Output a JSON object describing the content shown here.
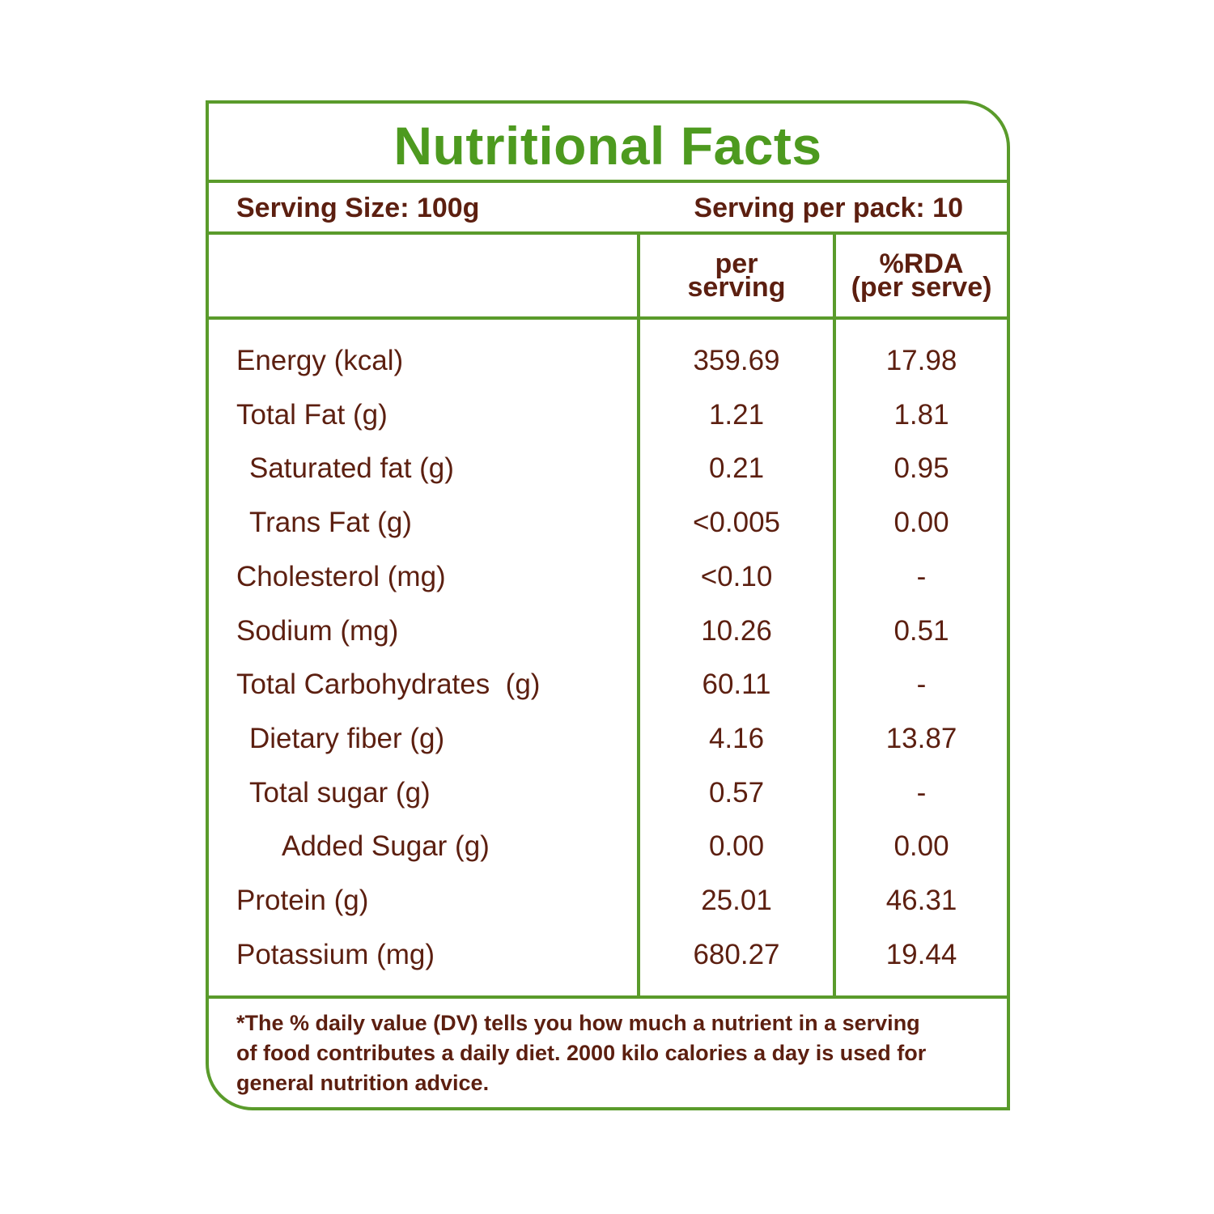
{
  "title": "Nutritional Facts",
  "serving_size": "Serving Size: 100g",
  "serving_per_pack": "Serving per pack: 10",
  "columns": {
    "per_serving_line1": "per",
    "per_serving_line2": "serving",
    "rda_line1": "%RDA",
    "rda_line2": "(per serve)"
  },
  "rows": [
    {
      "label": "Energy (kcal)",
      "per_serving": "359.69",
      "rda": "17.98",
      "indent": 0
    },
    {
      "label": "Total Fat (g)",
      "per_serving": "1.21",
      "rda": "1.81",
      "indent": 0
    },
    {
      "label": "Saturated fat (g)",
      "per_serving": "0.21",
      "rda": "0.95",
      "indent": 1
    },
    {
      "label": "Trans Fat (g)",
      "per_serving": "<0.005",
      "rda": "0.00",
      "indent": 1
    },
    {
      "label": "Cholesterol (mg)",
      "per_serving": "<0.10",
      "rda": "-",
      "indent": 0
    },
    {
      "label": "Sodium (mg)",
      "per_serving": "10.26",
      "rda": "0.51",
      "indent": 0
    },
    {
      "label": "Total Carbohydrates  (g)",
      "per_serving": "60.11",
      "rda": "-",
      "indent": 0
    },
    {
      "label": "Dietary fiber (g)",
      "per_serving": "4.16",
      "rda": "13.87",
      "indent": 1
    },
    {
      "label": "Total sugar (g)",
      "per_serving": "0.57",
      "rda": "-",
      "indent": 1
    },
    {
      "label": "Added Sugar (g)",
      "per_serving": "0.00",
      "rda": "0.00",
      "indent": 2
    },
    {
      "label": "Protein (g)",
      "per_serving": "25.01",
      "rda": "46.31",
      "indent": 0
    },
    {
      "label": "Potassium (mg)",
      "per_serving": "680.27",
      "rda": "19.44",
      "indent": 0
    }
  ],
  "footnote_lines": [
    "*The % daily value (DV) tells you how much a nutrient in a serving",
    "of food contributes a daily diet. 2000 kilo calories a day is used for",
    "general nutrition advice."
  ],
  "colors": {
    "border": "#5a9b2b",
    "title": "#4d9a1f",
    "text": "#5c1f10"
  }
}
